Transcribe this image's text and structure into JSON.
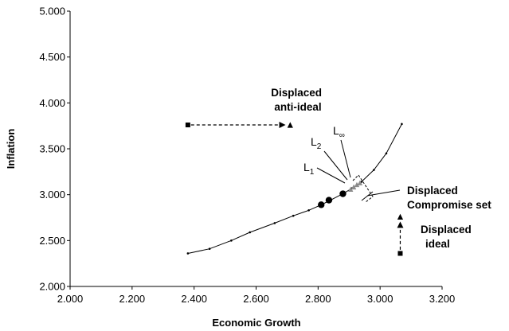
{
  "chart_data": {
    "type": "scatter",
    "xlabel": "Economic Growth",
    "ylabel": "Inflation",
    "xlim": [
      2.0,
      3.2
    ],
    "ylim": [
      2.0,
      5.0
    ],
    "x_ticks": [
      "2.000",
      "2.200",
      "2.400",
      "2.600",
      "2.800",
      "3.000",
      "3.200"
    ],
    "y_ticks": [
      "2.000",
      "2.500",
      "3.000",
      "3.500",
      "4.000",
      "4.500",
      "5.000"
    ],
    "grid": false,
    "legend": "none",
    "series": [
      {
        "type": "line",
        "points": [
          [
            2.38,
            2.36
          ],
          [
            2.45,
            2.41
          ],
          [
            2.52,
            2.5
          ],
          [
            2.58,
            2.59
          ],
          [
            2.66,
            2.69
          ],
          [
            2.72,
            2.77
          ],
          [
            2.77,
            2.83
          ],
          [
            2.81,
            2.89
          ],
          [
            2.84,
            2.94
          ],
          [
            2.88,
            3.01
          ],
          [
            2.91,
            3.07
          ],
          [
            2.94,
            3.14
          ],
          [
            2.98,
            3.27
          ],
          [
            3.02,
            3.45
          ],
          [
            3.07,
            3.77
          ]
        ]
      },
      {
        "type": "markers",
        "marker": "circle",
        "points": [
          [
            2.81,
            2.89
          ],
          [
            2.835,
            2.94
          ],
          [
            2.88,
            3.01
          ]
        ]
      },
      {
        "type": "markers",
        "marker": "triangle",
        "points": [
          [
            2.905,
            3.06
          ],
          [
            2.915,
            3.085
          ],
          [
            2.925,
            3.11
          ],
          [
            2.935,
            3.13
          ],
          [
            2.71,
            3.76
          ],
          [
            3.065,
            2.76
          ]
        ]
      },
      {
        "type": "markers",
        "marker": "square",
        "points": [
          [
            2.38,
            3.76
          ],
          [
            3.065,
            2.36
          ]
        ]
      }
    ],
    "arrows": [
      {
        "from": [
          2.39,
          3.76
        ],
        "to": [
          2.69,
          3.76
        ]
      },
      {
        "from": [
          3.065,
          2.4
        ],
        "to": [
          3.065,
          2.69
        ]
      }
    ],
    "annotations": [
      {
        "lines": [
          "Displaced",
          "anti-ideal"
        ]
      },
      {
        "lines": [
          "Displaced",
          "Compromise set"
        ]
      },
      {
        "lines": [
          "Displaced",
          "ideal"
        ]
      }
    ],
    "distance_labels": [
      {
        "base": "L",
        "sub": "1"
      },
      {
        "base": "L",
        "sub": "2"
      },
      {
        "base": "L",
        "sub": "∞"
      }
    ]
  }
}
